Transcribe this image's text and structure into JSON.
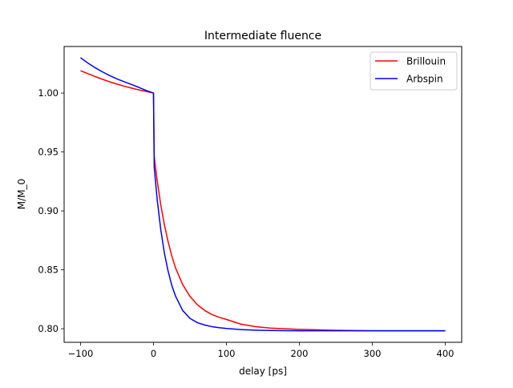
{
  "chart_data": {
    "type": "line",
    "title": "Intermediate fluence",
    "xlabel": "delay [ps]",
    "ylabel": "M/M_0",
    "xlim": [
      -122.5,
      422.5
    ],
    "ylim": [
      0.7885,
      1.0395
    ],
    "xticks": [
      -100,
      0,
      100,
      200,
      300,
      400
    ],
    "xtick_labels": [
      "−100",
      "0",
      "100",
      "200",
      "300",
      "400"
    ],
    "yticks": [
      0.8,
      0.85,
      0.9,
      0.95,
      1.0
    ],
    "ytick_labels": [
      "0.80",
      "0.85",
      "0.90",
      "0.95",
      "1.00"
    ],
    "grid": false,
    "legend_position": "top-right",
    "series": [
      {
        "name": "Brillouin",
        "color": "#ff0000",
        "x": [
          -100,
          -90,
          -80,
          -70,
          -60,
          -50,
          -40,
          -30,
          -20,
          -10,
          0,
          1,
          5,
          10,
          15,
          20,
          25,
          30,
          40,
          50,
          60,
          70,
          80,
          90,
          100,
          120,
          140,
          160,
          180,
          200,
          250,
          300,
          350,
          400
        ],
        "y": [
          1.019,
          1.0165,
          1.014,
          1.0117,
          1.0095,
          1.0076,
          1.0058,
          1.0042,
          1.0027,
          1.0013,
          1.0,
          0.946,
          0.926,
          0.905,
          0.888,
          0.874,
          0.862,
          0.852,
          0.8375,
          0.8275,
          0.8205,
          0.8156,
          0.8121,
          0.8097,
          0.8079,
          0.8039,
          0.8018,
          0.8006,
          0.8,
          0.7995,
          0.7987,
          0.7983,
          0.7983,
          0.7983
        ]
      },
      {
        "name": "Arbspin",
        "color": "#0000ff",
        "x": [
          -100,
          -90,
          -80,
          -70,
          -60,
          -50,
          -40,
          -30,
          -20,
          -10,
          0,
          1,
          5,
          10,
          15,
          20,
          25,
          30,
          40,
          50,
          60,
          70,
          80,
          90,
          100,
          120,
          140,
          160,
          180,
          200,
          250,
          300,
          350,
          400
        ],
        "y": [
          1.03,
          1.0255,
          1.0215,
          1.018,
          1.0148,
          1.012,
          1.0095,
          1.0072,
          1.0048,
          1.0022,
          1.0,
          0.937,
          0.91,
          0.884,
          0.864,
          0.849,
          0.837,
          0.828,
          0.8155,
          0.8088,
          0.8052,
          0.8032,
          0.8018,
          0.8009,
          0.8002,
          0.7993,
          0.7988,
          0.7985,
          0.7984,
          0.7983,
          0.7983,
          0.7983,
          0.7983,
          0.7983
        ]
      }
    ]
  }
}
